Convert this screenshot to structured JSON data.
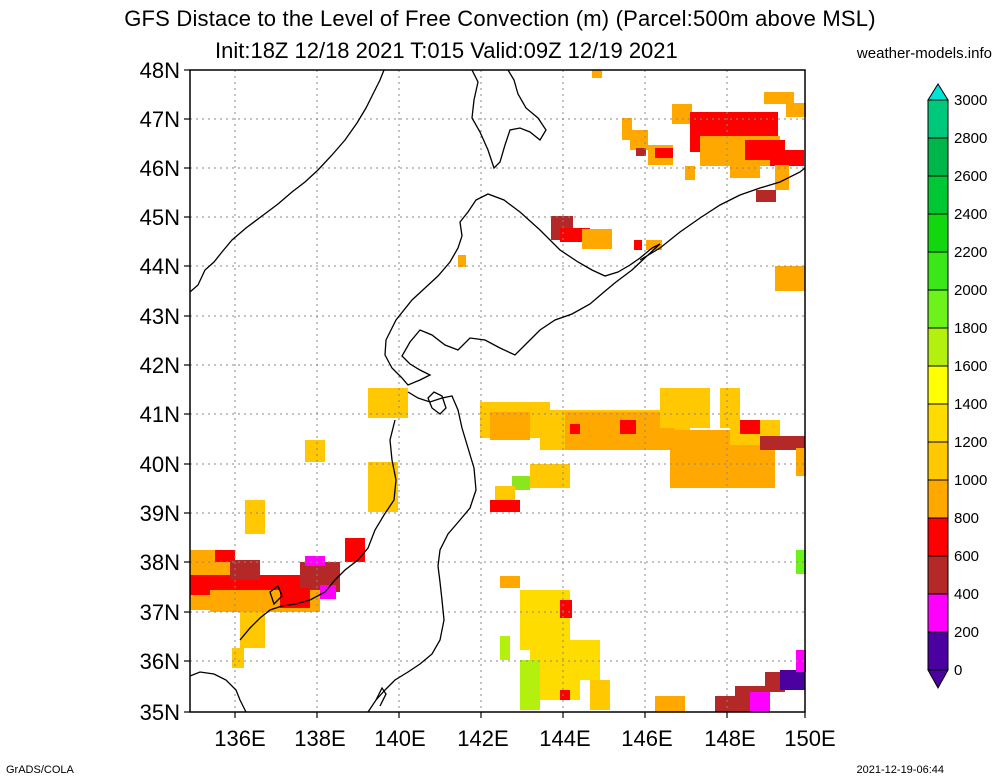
{
  "title_line1": "GFS Distace to the Level of Free Convection (m) (Parcel:500m above MSL)",
  "title_line2": "Init:18Z 12/18 2021 T:015 Valid:09Z 12/19 2021",
  "credit": "weather-models.info",
  "footer_left": "GrADS/COLA",
  "footer_right": "2021-12-19-06:44",
  "map": {
    "lat_labels": [
      "48N",
      "47N",
      "46N",
      "45N",
      "44N",
      "43N",
      "42N",
      "41N",
      "40N",
      "39N",
      "38N",
      "37N",
      "36N",
      "35N"
    ],
    "lon_labels": [
      "136E",
      "138E",
      "140E",
      "142E",
      "144E",
      "146E",
      "148E",
      "150E"
    ]
  },
  "colorbar": {
    "labels": [
      "3000",
      "2800",
      "2600",
      "2400",
      "2200",
      "2000",
      "1800",
      "1600",
      "1400",
      "1200",
      "1000",
      "800",
      "600",
      "400",
      "200",
      "0"
    ],
    "colors": [
      "#00e3d6",
      "#00c87a",
      "#00b54a",
      "#00c832",
      "#12d610",
      "#3ae81a",
      "#6ef21c",
      "#b4f00e",
      "#ffff00",
      "#ffdc00",
      "#ffc800",
      "#ffa800",
      "#ff0000",
      "#b42828",
      "#ff00ff",
      "#4b00a0"
    ]
  }
}
